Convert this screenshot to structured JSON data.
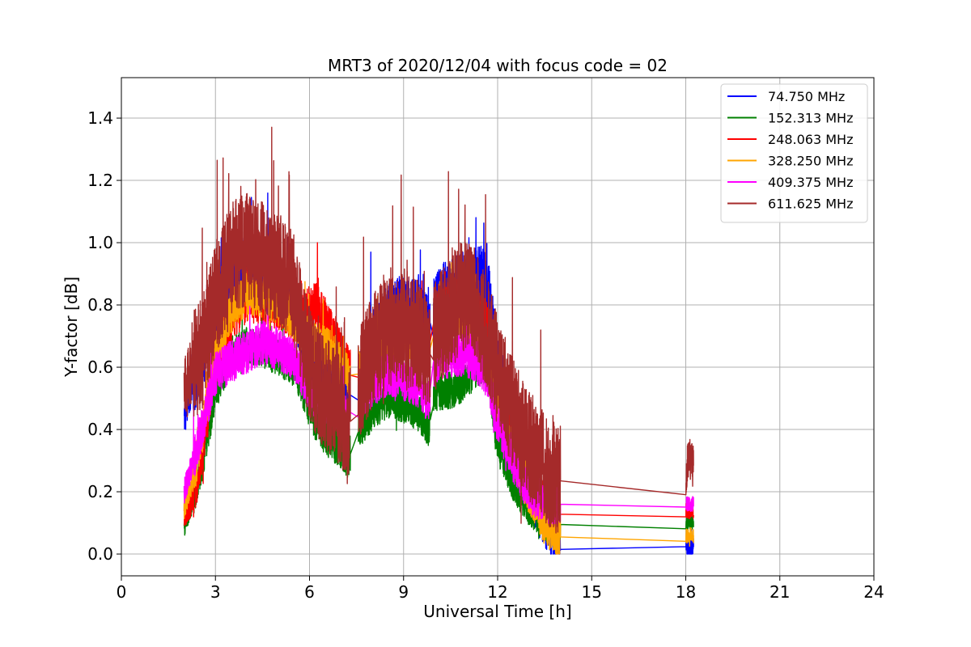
{
  "chart_data": {
    "type": "line",
    "title": "MRT3 of 2020/12/04 with focus code = 02",
    "xlabel": "Universal Time [h]",
    "ylabel": "Y-factor [dB]",
    "xlim": [
      0,
      24
    ],
    "ylim": [
      -0.07,
      1.53
    ],
    "xticks": [
      0,
      3,
      6,
      9,
      12,
      15,
      18,
      21,
      24
    ],
    "yticks": [
      0.0,
      0.2,
      0.4,
      0.6,
      0.8,
      1.0,
      1.2,
      1.4
    ],
    "xtick_labels": [
      "0",
      "3",
      "6",
      "9",
      "12",
      "15",
      "18",
      "21",
      "24"
    ],
    "ytick_labels": [
      "0.0",
      "0.2",
      "0.4",
      "0.6",
      "0.8",
      "1.0",
      "1.2",
      "1.4"
    ],
    "grid": true,
    "legend_position": "top-right",
    "series": [
      {
        "name": " 74.750 MHz",
        "color": "#0000ff",
        "points": [
          [
            2.0,
            0.45
          ],
          [
            2.3,
            0.55
          ],
          [
            2.5,
            0.6
          ],
          [
            3.0,
            0.78
          ],
          [
            3.5,
            0.9
          ],
          [
            4.0,
            0.92
          ],
          [
            4.5,
            0.88
          ],
          [
            5.0,
            0.85
          ],
          [
            5.5,
            0.8
          ],
          [
            5.9,
            0.7
          ],
          [
            6.2,
            0.6
          ],
          [
            6.5,
            0.55
          ],
          [
            6.8,
            0.5
          ],
          [
            7.0,
            0.48
          ],
          [
            7.2,
            0.5
          ],
          [
            7.4,
            0.52
          ],
          [
            7.6,
            0.55
          ],
          [
            8.0,
            0.68
          ],
          [
            8.5,
            0.78
          ],
          [
            9.0,
            0.8
          ],
          [
            9.5,
            0.78
          ],
          [
            9.8,
            0.72
          ],
          [
            10.0,
            0.8
          ],
          [
            10.3,
            0.84
          ],
          [
            10.6,
            0.86
          ],
          [
            10.9,
            0.87
          ],
          [
            11.2,
            0.88
          ],
          [
            11.5,
            0.89
          ],
          [
            11.7,
            0.85
          ],
          [
            12.0,
            0.6
          ],
          [
            12.5,
            0.4
          ],
          [
            13.0,
            0.22
          ],
          [
            13.5,
            0.12
          ],
          [
            13.9,
            0.05
          ],
          [
            14.0,
            0.015
          ],
          [
            18.0,
            0.015
          ],
          [
            18.05,
            0.02
          ],
          [
            18.25,
            0.02
          ]
        ],
        "noise": 0.1
      },
      {
        "name": "152.313 MHz",
        "color": "#008000",
        "points": [
          [
            2.0,
            0.09
          ],
          [
            2.3,
            0.18
          ],
          [
            2.6,
            0.3
          ],
          [
            3.0,
            0.52
          ],
          [
            3.5,
            0.64
          ],
          [
            4.0,
            0.67
          ],
          [
            4.5,
            0.66
          ],
          [
            5.0,
            0.63
          ],
          [
            5.5,
            0.6
          ],
          [
            5.9,
            0.5
          ],
          [
            6.2,
            0.42
          ],
          [
            6.5,
            0.38
          ],
          [
            6.8,
            0.35
          ],
          [
            7.0,
            0.33
          ],
          [
            7.2,
            0.3
          ],
          [
            7.4,
            0.34
          ],
          [
            7.6,
            0.4
          ],
          [
            8.0,
            0.45
          ],
          [
            8.5,
            0.5
          ],
          [
            9.0,
            0.48
          ],
          [
            9.5,
            0.45
          ],
          [
            9.8,
            0.4
          ],
          [
            10.0,
            0.52
          ],
          [
            10.3,
            0.52
          ],
          [
            10.6,
            0.53
          ],
          [
            10.9,
            0.55
          ],
          [
            11.2,
            0.58
          ],
          [
            11.5,
            0.61
          ],
          [
            11.7,
            0.58
          ],
          [
            12.0,
            0.35
          ],
          [
            12.5,
            0.23
          ],
          [
            13.0,
            0.15
          ],
          [
            13.5,
            0.1
          ],
          [
            13.9,
            0.09
          ],
          [
            14.0,
            0.095
          ],
          [
            18.0,
            0.095
          ],
          [
            18.05,
            0.1
          ],
          [
            18.25,
            0.1
          ]
        ],
        "noise": 0.06
      },
      {
        "name": "248.063 MHz",
        "color": "#ff0000",
        "points": [
          [
            2.0,
            0.13
          ],
          [
            2.3,
            0.18
          ],
          [
            2.6,
            0.35
          ],
          [
            3.0,
            0.62
          ],
          [
            3.5,
            0.75
          ],
          [
            4.0,
            0.82
          ],
          [
            4.5,
            0.82
          ],
          [
            5.0,
            0.8
          ],
          [
            5.5,
            0.76
          ],
          [
            5.9,
            0.78
          ],
          [
            6.2,
            0.8
          ],
          [
            6.5,
            0.75
          ],
          [
            6.8,
            0.68
          ],
          [
            7.0,
            0.64
          ],
          [
            7.2,
            0.6
          ],
          [
            7.4,
            0.55
          ],
          [
            7.6,
            0.58
          ],
          [
            8.0,
            0.62
          ],
          [
            8.5,
            0.68
          ],
          [
            9.0,
            0.7
          ],
          [
            9.5,
            0.7
          ],
          [
            9.8,
            0.65
          ],
          [
            10.0,
            0.78
          ],
          [
            10.3,
            0.79
          ],
          [
            10.6,
            0.8
          ],
          [
            10.9,
            0.81
          ],
          [
            11.2,
            0.8
          ],
          [
            11.5,
            0.76
          ],
          [
            11.7,
            0.72
          ],
          [
            12.0,
            0.55
          ],
          [
            12.5,
            0.37
          ],
          [
            13.0,
            0.25
          ],
          [
            13.5,
            0.16
          ],
          [
            13.9,
            0.13
          ],
          [
            14.0,
            0.128
          ],
          [
            18.0,
            0.14
          ],
          [
            18.05,
            0.14
          ],
          [
            18.25,
            0.14
          ]
        ],
        "noise": 0.08
      },
      {
        "name": "328.250 MHz",
        "color": "#ffa500",
        "points": [
          [
            2.0,
            0.15
          ],
          [
            2.3,
            0.25
          ],
          [
            2.6,
            0.4
          ],
          [
            3.0,
            0.65
          ],
          [
            3.5,
            0.78
          ],
          [
            4.0,
            0.84
          ],
          [
            4.5,
            0.83
          ],
          [
            5.0,
            0.8
          ],
          [
            5.5,
            0.76
          ],
          [
            5.9,
            0.7
          ],
          [
            6.2,
            0.68
          ],
          [
            6.5,
            0.66
          ],
          [
            6.8,
            0.64
          ],
          [
            7.0,
            0.6
          ],
          [
            7.2,
            0.58
          ],
          [
            7.4,
            0.57
          ],
          [
            7.6,
            0.6
          ],
          [
            8.0,
            0.64
          ],
          [
            8.5,
            0.7
          ],
          [
            9.0,
            0.7
          ],
          [
            9.5,
            0.68
          ],
          [
            9.8,
            0.64
          ],
          [
            10.0,
            0.72
          ],
          [
            10.3,
            0.73
          ],
          [
            10.6,
            0.74
          ],
          [
            10.9,
            0.74
          ],
          [
            11.2,
            0.72
          ],
          [
            11.5,
            0.67
          ],
          [
            11.7,
            0.63
          ],
          [
            12.0,
            0.48
          ],
          [
            12.5,
            0.32
          ],
          [
            13.0,
            0.2
          ],
          [
            13.5,
            0.1
          ],
          [
            13.9,
            0.06
          ],
          [
            14.0,
            0.055
          ],
          [
            18.0,
            0.055
          ],
          [
            18.05,
            0.06
          ],
          [
            18.25,
            0.06
          ]
        ],
        "noise": 0.07
      },
      {
        "name": "409.375 MHz",
        "color": "#ff00ff",
        "points": [
          [
            2.0,
            0.2
          ],
          [
            2.3,
            0.3
          ],
          [
            2.6,
            0.42
          ],
          [
            3.0,
            0.58
          ],
          [
            3.5,
            0.62
          ],
          [
            4.0,
            0.65
          ],
          [
            4.5,
            0.68
          ],
          [
            5.0,
            0.66
          ],
          [
            5.5,
            0.63
          ],
          [
            5.9,
            0.55
          ],
          [
            6.2,
            0.5
          ],
          [
            6.5,
            0.48
          ],
          [
            6.8,
            0.47
          ],
          [
            7.0,
            0.46
          ],
          [
            7.2,
            0.45
          ],
          [
            7.4,
            0.46
          ],
          [
            7.6,
            0.5
          ],
          [
            8.0,
            0.54
          ],
          [
            8.5,
            0.58
          ],
          [
            9.0,
            0.56
          ],
          [
            9.5,
            0.54
          ],
          [
            9.8,
            0.5
          ],
          [
            10.0,
            0.62
          ],
          [
            10.3,
            0.63
          ],
          [
            10.6,
            0.64
          ],
          [
            10.9,
            0.64
          ],
          [
            11.2,
            0.63
          ],
          [
            11.5,
            0.6
          ],
          [
            11.7,
            0.56
          ],
          [
            12.0,
            0.42
          ],
          [
            12.5,
            0.3
          ],
          [
            13.0,
            0.2
          ],
          [
            13.5,
            0.17
          ],
          [
            13.9,
            0.16
          ],
          [
            14.0,
            0.16
          ],
          [
            18.0,
            0.16
          ],
          [
            18.05,
            0.16
          ],
          [
            18.25,
            0.16
          ]
        ],
        "noise": 0.07
      },
      {
        "name": "611.625 MHz",
        "color": "#a52a2a",
        "points": [
          [
            2.0,
            0.52
          ],
          [
            2.3,
            0.6
          ],
          [
            2.6,
            0.65
          ],
          [
            3.0,
            0.82
          ],
          [
            3.5,
            0.95
          ],
          [
            4.0,
            0.98
          ],
          [
            4.5,
            0.95
          ],
          [
            5.0,
            0.92
          ],
          [
            5.5,
            0.85
          ],
          [
            5.9,
            0.65
          ],
          [
            6.2,
            0.55
          ],
          [
            6.5,
            0.52
          ],
          [
            6.8,
            0.48
          ],
          [
            7.0,
            0.45
          ],
          [
            7.2,
            0.4
          ],
          [
            7.4,
            0.45
          ],
          [
            7.6,
            0.55
          ],
          [
            8.0,
            0.65
          ],
          [
            8.5,
            0.72
          ],
          [
            9.0,
            0.72
          ],
          [
            9.5,
            0.7
          ],
          [
            9.8,
            0.62
          ],
          [
            10.0,
            0.7
          ],
          [
            10.3,
            0.75
          ],
          [
            10.6,
            0.8
          ],
          [
            10.9,
            0.83
          ],
          [
            11.2,
            0.82
          ],
          [
            11.5,
            0.75
          ],
          [
            11.7,
            0.7
          ],
          [
            12.0,
            0.58
          ],
          [
            12.5,
            0.45
          ],
          [
            13.0,
            0.35
          ],
          [
            13.5,
            0.28
          ],
          [
            13.9,
            0.24
          ],
          [
            14.0,
            0.235
          ],
          [
            18.0,
            0.23
          ],
          [
            18.05,
            0.3
          ],
          [
            18.25,
            0.3
          ]
        ],
        "noise": 0.18
      }
    ]
  }
}
